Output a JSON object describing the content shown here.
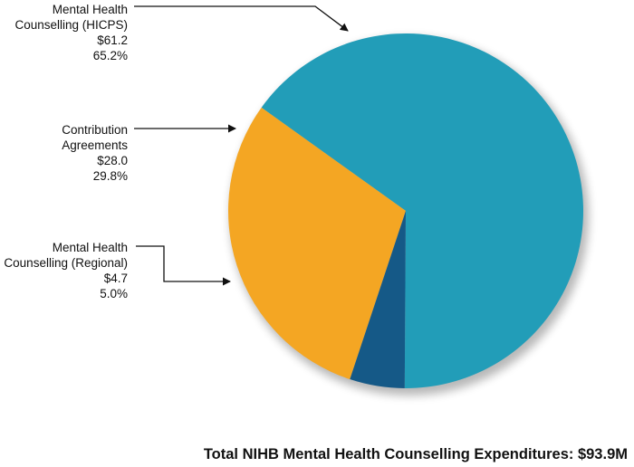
{
  "chart_data": {
    "type": "pie",
    "title": "Total NIHB Mental Health Counselling Expenditures: $93.9M",
    "slices": [
      {
        "label_lines": [
          "Mental Health",
          "Counselling (HICPS)"
        ],
        "amount": "$61.2",
        "value": 65.2,
        "percent_label": "65.2%",
        "color": "#229db8"
      },
      {
        "label_lines": [
          "Contribution",
          "Agreements"
        ],
        "amount": "$28.0",
        "value": 29.8,
        "percent_label": "29.8%",
        "color": "#f4a623"
      },
      {
        "label_lines": [
          "Mental Health",
          "Counselling (Regional)"
        ],
        "amount": "$4.7",
        "value": 5.0,
        "percent_label": "5.0%",
        "color": "#155987"
      }
    ]
  }
}
